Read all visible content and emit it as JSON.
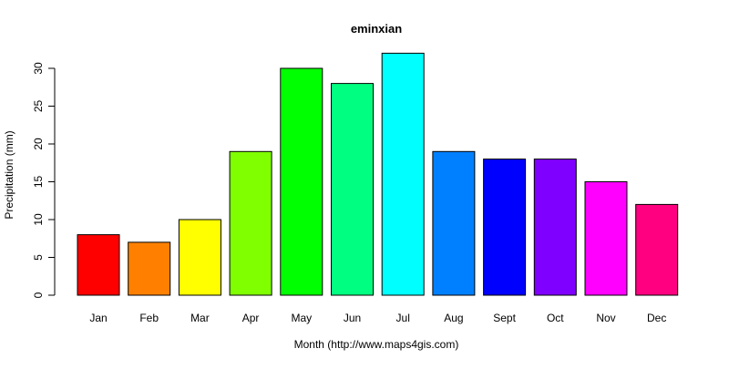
{
  "chart_data": {
    "type": "bar",
    "title": "eminxian",
    "xlabel": "Month (http://www.maps4gis.com)",
    "ylabel": "Precipitation (mm)",
    "categories": [
      "Jan",
      "Feb",
      "Mar",
      "Apr",
      "May",
      "Jun",
      "Jul",
      "Aug",
      "Sept",
      "Oct",
      "Nov",
      "Dec"
    ],
    "values": [
      8,
      7,
      10,
      19,
      30,
      28,
      32,
      19,
      18,
      18,
      15,
      12
    ],
    "colors": [
      "#FF0000",
      "#FF8000",
      "#FFFF00",
      "#80FF00",
      "#00FF00",
      "#00FF80",
      "#00FFFF",
      "#0080FF",
      "#0000FF",
      "#8000FF",
      "#FF00FF",
      "#FF0080"
    ],
    "yticks": [
      0,
      5,
      10,
      15,
      20,
      25,
      30
    ],
    "ylim": [
      0,
      32
    ],
    "grid": false,
    "legend": "none"
  }
}
